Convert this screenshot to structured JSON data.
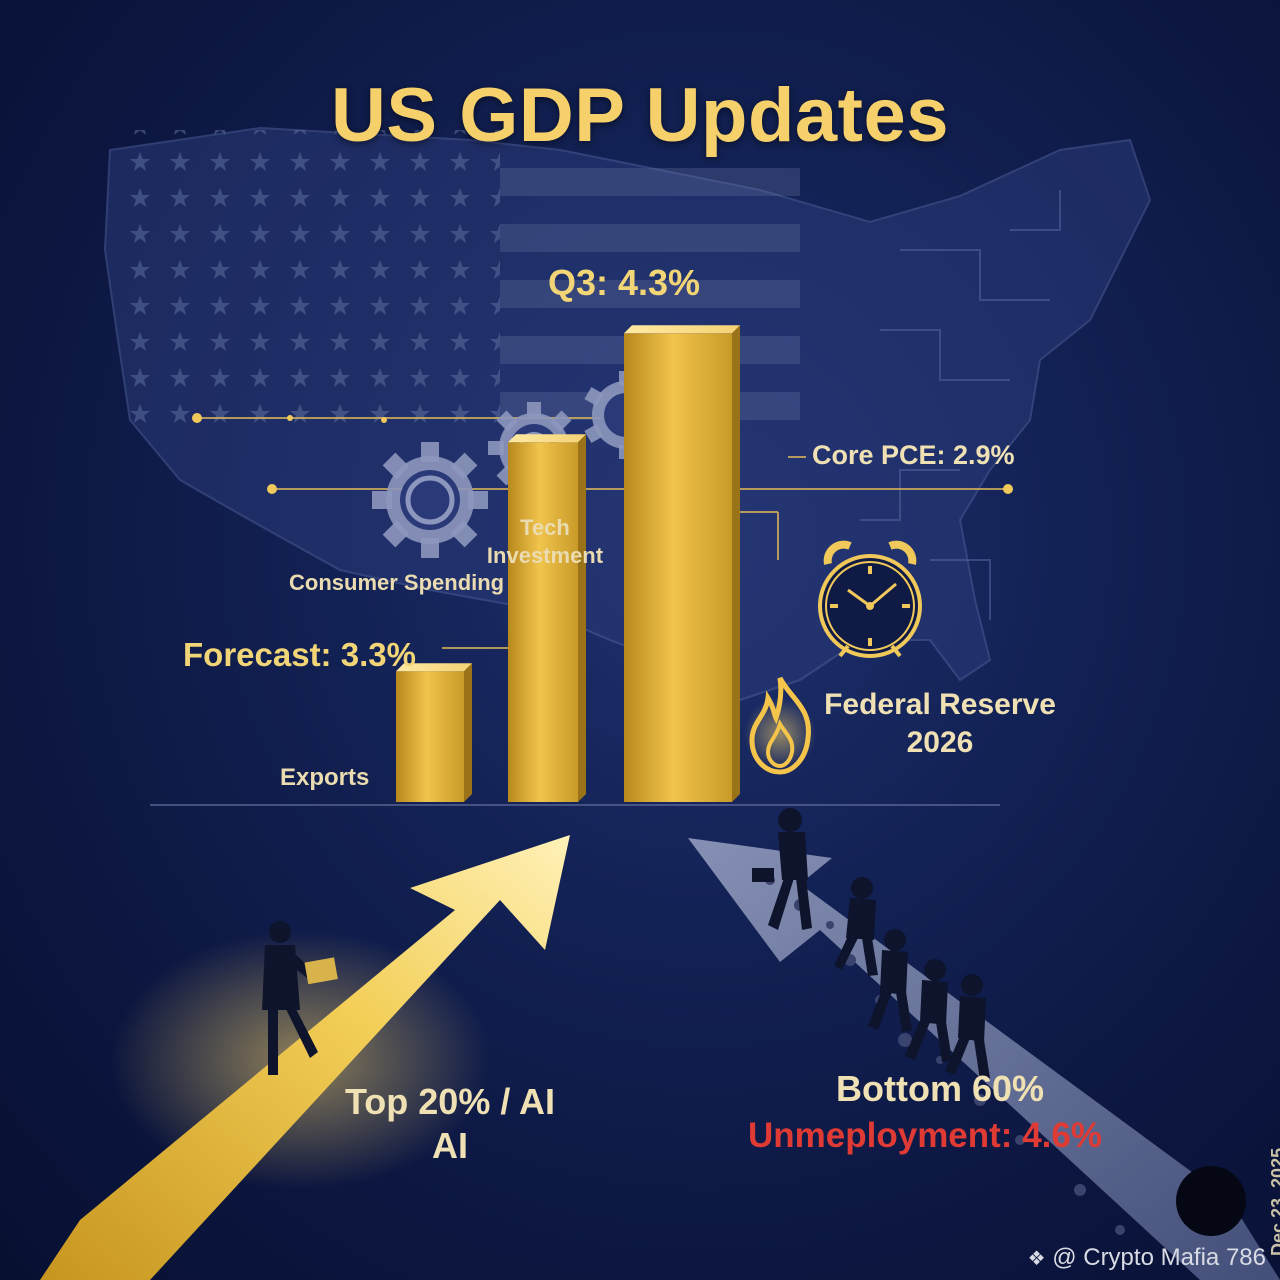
{
  "colors": {
    "gold": "#f4cf62",
    "navy": "#132255",
    "red": "#e03a35"
  },
  "icons": {
    "flag_map": "us-flag-map-icon",
    "gear_consumer": "gear-icon",
    "gear_tech": "gear-icon",
    "gear_third": "gear-icon",
    "clock": "alarm-clock-icon",
    "flame": "flame-icon",
    "walker": "businessman-with-laptop-icon",
    "crowd": "walking-crowd-icon",
    "watermark": "binance-logo-icon",
    "avatar": "avatar"
  },
  "chart_data": {
    "type": "bar",
    "title": "US GDP Updates",
    "categories": [
      "Exports",
      "Forecast",
      "Q3"
    ],
    "values": [
      1.2,
      3.3,
      4.3
    ],
    "data_labels": [
      "Exports",
      "Forecast: 3.3%",
      "Q3: 4.3%"
    ],
    "ylim": [
      0,
      5
    ],
    "grid": false,
    "annotations": {
      "core_pce": "Core PCE: 2.9%",
      "tech_investment": "Tech Investment",
      "tech_line1": "Tech",
      "tech_line2": "Investment",
      "consumer_spending": "Consumer Spending",
      "federal_reserve": "Federal Reserve",
      "federal_reserve_year": "2026",
      "top_line1": "Top 20% / AI",
      "top_line2": "AI",
      "bottom": "Bottom 60%",
      "unemployment": "Unmeployment: 4.6%",
      "date": "Dec 23, 2025"
    }
  },
  "footer": {
    "watermark": "@ Crypto Mafia 786"
  }
}
